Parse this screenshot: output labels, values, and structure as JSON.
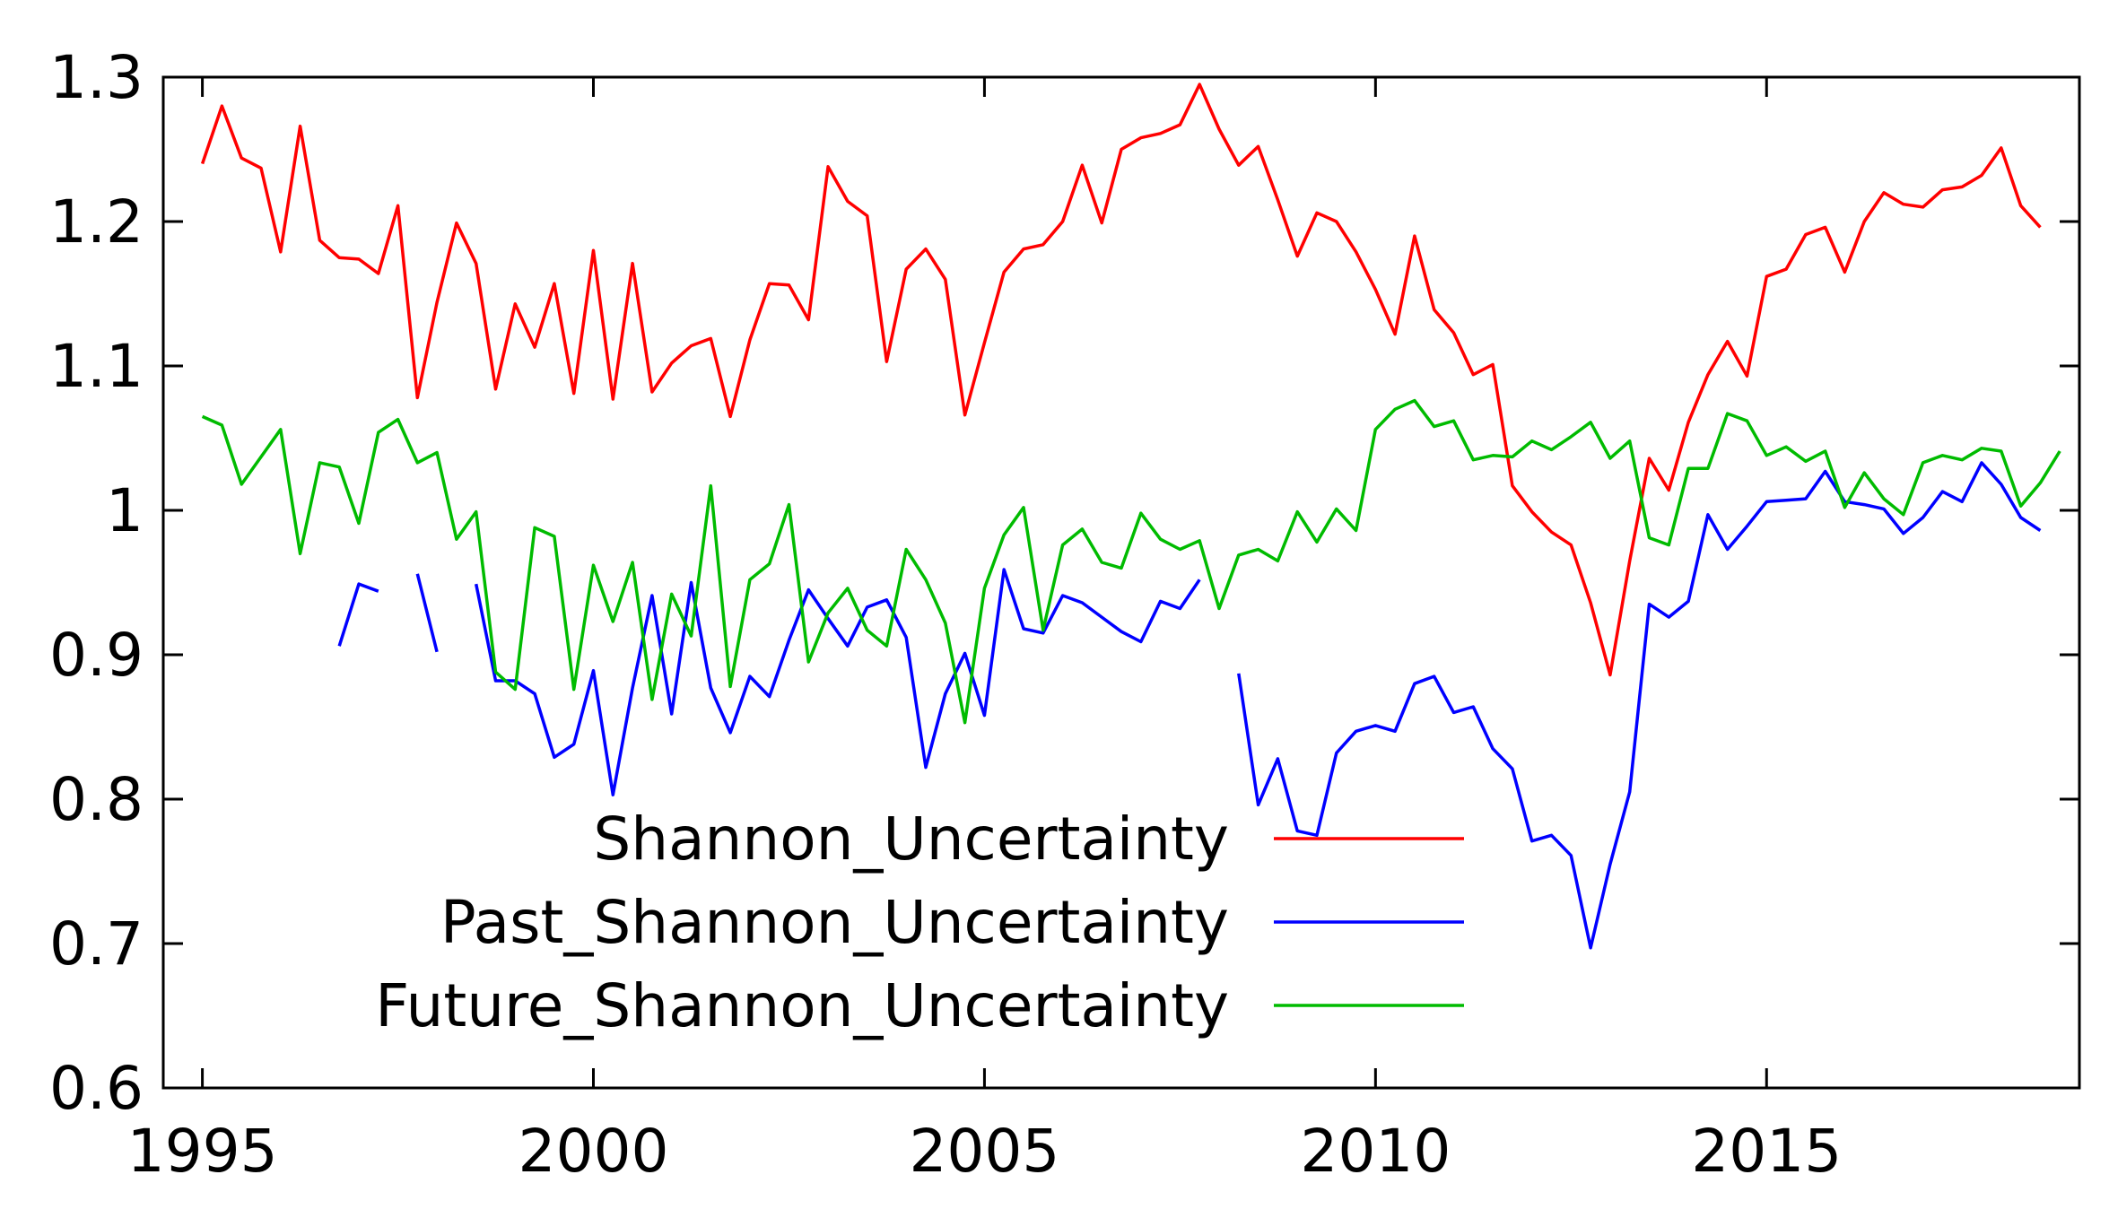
{
  "chart_data": {
    "type": "line",
    "title": "",
    "xlabel": "",
    "ylabel": "",
    "xlim": [
      1994.5,
      2019.0
    ],
    "ylim": [
      0.6,
      1.3
    ],
    "xticks": [
      {
        "value": 1995,
        "label": "1995"
      },
      {
        "value": 2000,
        "label": "2000"
      },
      {
        "value": 2005,
        "label": "2005"
      },
      {
        "value": 2010,
        "label": "2010"
      },
      {
        "value": 2015,
        "label": "2015"
      }
    ],
    "yticks": [
      {
        "value": 0.6,
        "label": "0.6"
      },
      {
        "value": 0.7,
        "label": "0.7"
      },
      {
        "value": 0.8,
        "label": "0.8"
      },
      {
        "value": 0.9,
        "label": "0.9"
      },
      {
        "value": 1.0,
        "label": "1"
      },
      {
        "value": 1.1,
        "label": "1.1"
      },
      {
        "value": 1.2,
        "label": "1.2"
      },
      {
        "value": 1.3,
        "label": "1.3"
      }
    ],
    "legend_position": "bottom-center",
    "series": [
      {
        "name": "Shannon_Uncertainty",
        "color": "#ff0000",
        "x": [
          1995.0,
          1995.25,
          1995.5,
          1995.75,
          1996.0,
          1996.25,
          1996.5,
          1996.75,
          1997.0,
          1997.25,
          1997.5,
          1997.75,
          1998.0,
          1998.25,
          1998.5,
          1998.75,
          1999.0,
          1999.25,
          1999.5,
          1999.75,
          2000.0,
          2000.25,
          2000.5,
          2000.75,
          2001.0,
          2001.25,
          2001.5,
          2001.75,
          2002.0,
          2002.25,
          2002.5,
          2002.75,
          2003.0,
          2003.25,
          2003.5,
          2003.75,
          2004.0,
          2004.25,
          2004.5,
          2004.75,
          2005.0,
          2005.25,
          2005.5,
          2005.75,
          2006.0,
          2006.25,
          2006.5,
          2006.75,
          2007.0,
          2007.25,
          2007.5,
          2007.75,
          2008.0,
          2008.25,
          2008.5,
          2008.75,
          2009.0,
          2009.25,
          2009.5,
          2009.75,
          2010.0,
          2010.25,
          2010.5,
          2010.75,
          2011.0,
          2011.25,
          2011.5,
          2011.75,
          2012.0,
          2012.25,
          2012.5,
          2012.75,
          2013.0,
          2013.25,
          2013.5,
          2013.75,
          2014.0,
          2014.25,
          2014.5,
          2014.75,
          2015.0,
          2015.25,
          2015.5,
          2015.75,
          2016.0,
          2016.25,
          2016.5,
          2016.75,
          2017.0,
          2017.25,
          2017.5,
          2017.75,
          2018.0,
          2018.25,
          2018.5
        ],
        "y": [
          1.24,
          1.28,
          1.244,
          1.237,
          1.179,
          1.266,
          1.187,
          1.175,
          1.174,
          1.164,
          1.211,
          1.078,
          1.144,
          1.199,
          1.171,
          1.084,
          1.143,
          1.113,
          1.157,
          1.081,
          1.18,
          1.077,
          1.171,
          1.082,
          1.102,
          1.114,
          1.119,
          1.065,
          1.118,
          1.157,
          1.156,
          1.132,
          1.238,
          1.214,
          1.204,
          1.103,
          1.167,
          1.181,
          1.16,
          1.066,
          1.116,
          1.165,
          1.181,
          1.184,
          1.2,
          1.239,
          1.199,
          1.25,
          1.258,
          1.261,
          1.267,
          1.295,
          1.264,
          1.239,
          1.252,
          1.215,
          1.176,
          1.206,
          1.2,
          1.179,
          1.153,
          1.122,
          1.19,
          1.139,
          1.123,
          1.094,
          1.101,
          1.017,
          0.999,
          0.985,
          0.976,
          0.936,
          0.886,
          0.965,
          1.036,
          1.014,
          1.061,
          1.094,
          1.117,
          1.093,
          1.162,
          1.167,
          1.191,
          1.196,
          1.165,
          1.2,
          1.22,
          1.212,
          1.21,
          1.222,
          1.224,
          1.232,
          1.251,
          1.211,
          1.196
        ]
      },
      {
        "name": "Past_Shannon_Uncertainty",
        "color": "#0000ff",
        "x": [
          1996.75,
          1997.0,
          1997.25,
          null,
          1997.75,
          1998.0,
          null,
          1998.5,
          1998.75,
          1999.0,
          1999.25,
          1999.5,
          1999.75,
          2000.0,
          2000.25,
          2000.5,
          2000.75,
          2001.0,
          2001.25,
          2001.5,
          2001.75,
          2002.0,
          2002.25,
          2002.5,
          2002.75,
          2003.0,
          2003.25,
          2003.5,
          2003.75,
          2004.0,
          2004.25,
          2004.5,
          2004.75,
          2005.0,
          2005.25,
          2005.5,
          2005.75,
          2006.0,
          2006.25,
          2006.5,
          2006.75,
          2007.0,
          2007.25,
          2007.5,
          2007.75,
          null,
          2008.25,
          2008.5,
          2008.75,
          2009.0,
          2009.25,
          2009.5,
          2009.75,
          2010.0,
          2010.25,
          2010.5,
          2010.75,
          2011.0,
          2011.25,
          2011.5,
          2011.75,
          2012.0,
          2012.25,
          2012.5,
          2012.75,
          2013.0,
          2013.25,
          2013.5,
          2013.75,
          2014.0,
          2014.25,
          2014.5,
          2014.75,
          2015.0,
          2015.25,
          2015.5,
          2015.75,
          2016.0,
          2016.25,
          2016.5,
          2016.75,
          2017.0,
          2017.25,
          2017.5,
          2017.75,
          2018.0,
          2018.25,
          2018.5
        ],
        "y": [
          0.906,
          0.949,
          0.944,
          null,
          0.956,
          0.902,
          null,
          0.949,
          0.882,
          0.882,
          0.873,
          0.829,
          0.838,
          0.889,
          0.803,
          0.877,
          0.941,
          0.859,
          0.95,
          0.877,
          0.846,
          0.885,
          0.871,
          0.91,
          0.945,
          0.925,
          0.906,
          0.933,
          0.938,
          0.912,
          0.822,
          0.873,
          0.901,
          0.858,
          0.959,
          0.918,
          0.915,
          0.941,
          0.936,
          0.926,
          0.916,
          0.909,
          0.937,
          0.932,
          0.952,
          null,
          0.887,
          0.796,
          0.828,
          0.778,
          0.775,
          0.832,
          0.847,
          0.851,
          0.847,
          0.88,
          0.885,
          0.86,
          0.864,
          0.835,
          0.821,
          0.771,
          0.775,
          0.761,
          0.697,
          0.755,
          0.805,
          0.935,
          0.926,
          0.937,
          0.997,
          0.973,
          0.989,
          1.006,
          1.007,
          1.008,
          1.027,
          1.006,
          1.004,
          1.001,
          0.984,
          0.995,
          1.013,
          1.006,
          1.033,
          1.018,
          0.995,
          0.986
        ]
      },
      {
        "name": "Future_Shannon_Uncertainty",
        "color": "#00bb00",
        "x": [
          1995.0,
          1995.25,
          1995.5,
          1995.75,
          1996.0,
          1996.25,
          1996.5,
          1996.75,
          1997.0,
          1997.25,
          1997.5,
          1997.75,
          1998.0,
          1998.25,
          1998.5,
          1998.75,
          1999.0,
          1999.25,
          1999.5,
          1999.75,
          2000.0,
          2000.25,
          2000.5,
          2000.75,
          2001.0,
          2001.25,
          2001.5,
          2001.75,
          2002.0,
          2002.25,
          2002.5,
          2002.75,
          2003.0,
          2003.25,
          2003.5,
          2003.75,
          2004.0,
          2004.25,
          2004.5,
          2004.75,
          2005.0,
          2005.25,
          2005.5,
          2005.75,
          2006.0,
          2006.25,
          2006.5,
          2006.75,
          2007.0,
          2007.25,
          2007.5,
          2007.75,
          2008.0,
          2008.25,
          2008.5,
          2008.75,
          2009.0,
          2009.25,
          2009.5,
          2009.75,
          2010.0,
          2010.25,
          2010.5,
          2010.75,
          2011.0,
          2011.25,
          2011.5,
          2011.75,
          2012.0,
          2012.25,
          2012.5,
          2012.75,
          2013.0,
          2013.25,
          2013.5,
          2013.75,
          2014.0,
          2014.25,
          2014.5,
          2014.75,
          2015.0,
          2015.25,
          2015.5,
          2015.75,
          2016.0,
          2016.25,
          2016.5,
          2016.75,
          2017.0,
          2017.25,
          2017.5,
          2017.75,
          2018.0,
          2018.25,
          2018.5,
          2018.75
        ],
        "y": [
          1.065,
          1.059,
          1.018,
          1.037,
          1.056,
          0.97,
          1.033,
          1.03,
          0.991,
          1.054,
          1.063,
          1.033,
          1.04,
          0.98,
          0.999,
          0.888,
          0.876,
          0.988,
          0.982,
          0.876,
          0.962,
          0.923,
          0.964,
          0.869,
          0.942,
          0.913,
          1.017,
          0.878,
          0.952,
          0.963,
          1.004,
          0.895,
          0.929,
          0.946,
          0.917,
          0.906,
          0.973,
          0.952,
          0.922,
          0.853,
          0.946,
          0.983,
          1.002,
          0.917,
          0.976,
          0.987,
          0.964,
          0.96,
          0.998,
          0.98,
          0.973,
          0.979,
          0.932,
          0.969,
          0.973,
          0.965,
          0.999,
          0.978,
          1.001,
          0.986,
          1.056,
          1.07,
          1.076,
          1.058,
          1.062,
          1.035,
          1.038,
          1.037,
          1.048,
          1.042,
          1.051,
          1.061,
          1.036,
          1.048,
          0.981,
          0.976,
          1.029,
          1.029,
          1.067,
          1.062,
          1.038,
          1.044,
          1.034,
          1.041,
          1.002,
          1.026,
          1.008,
          0.997,
          1.033,
          1.038,
          1.035,
          1.043,
          1.041,
          1.003,
          1.019,
          1.041
        ]
      }
    ]
  }
}
